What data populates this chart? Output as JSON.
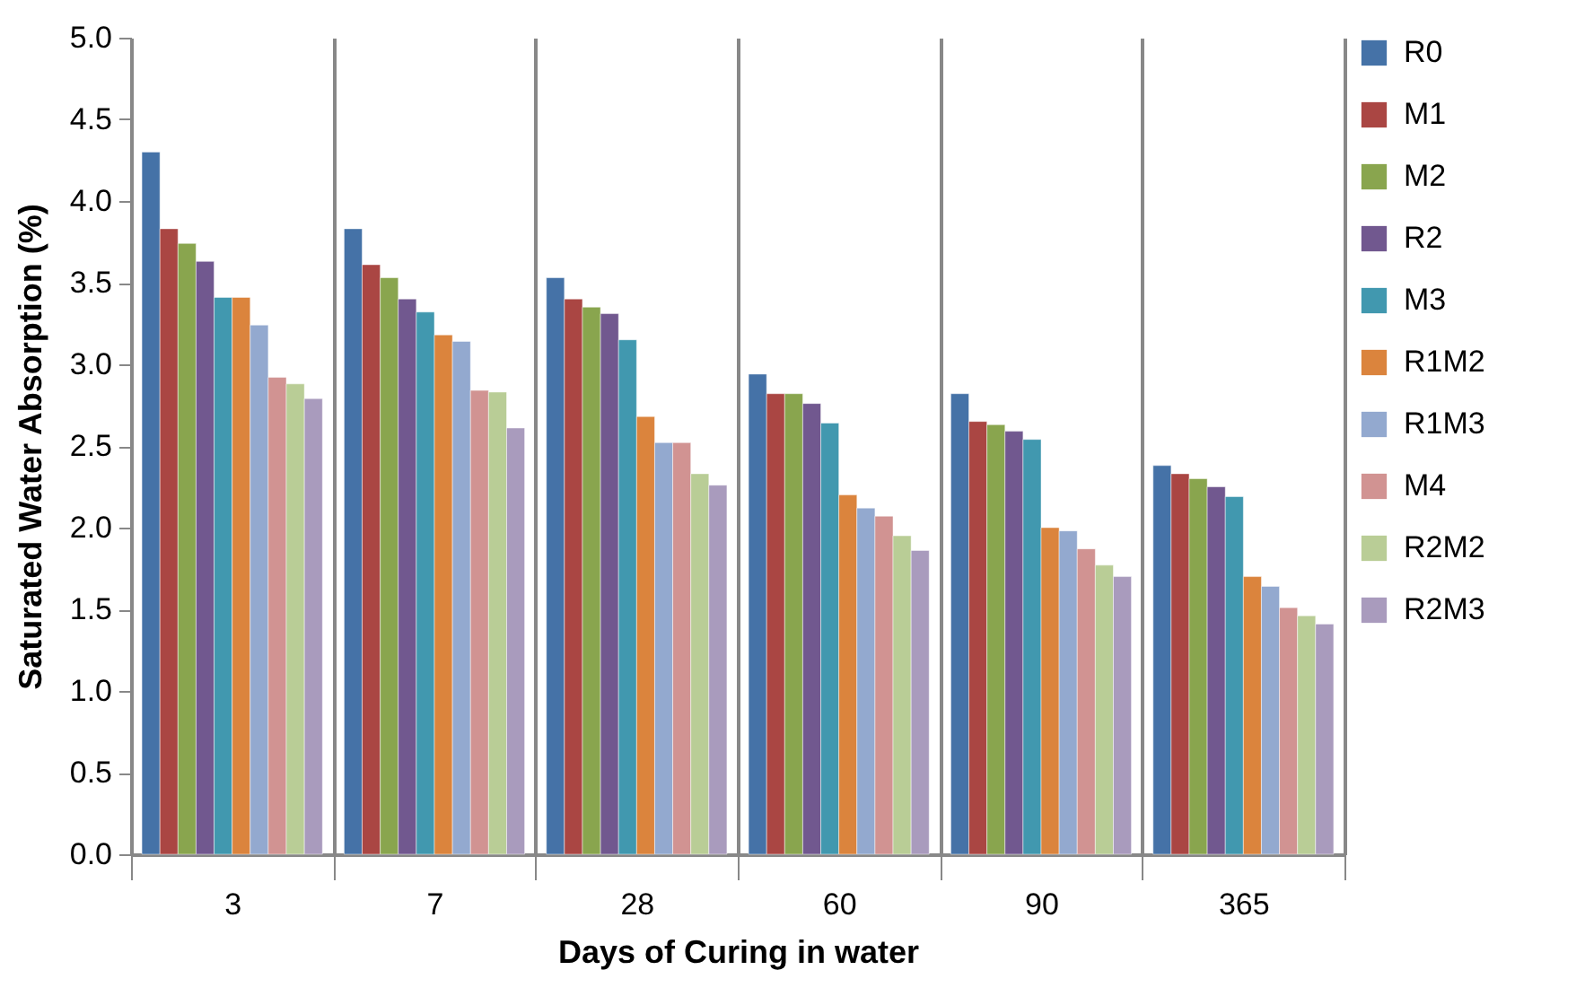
{
  "chart_data": {
    "type": "bar",
    "xlabel": "Days of Curing in water",
    "ylabel": "Saturated Water Absorption (%)",
    "categories": [
      "3",
      "7",
      "28",
      "60",
      "90",
      "365"
    ],
    "ylim": [
      0,
      5
    ],
    "yticks": [
      {
        "value": 0,
        "label": "0.0"
      },
      0.5,
      {
        "value": 1,
        "label": "1.0"
      },
      1.5,
      {
        "value": 2,
        "label": "2.0"
      },
      2.5,
      {
        "value": 3,
        "label": "3.0"
      },
      3.5,
      {
        "value": 4,
        "label": "4.0"
      },
      4.5,
      {
        "value": 5,
        "label": "5.0"
      }
    ],
    "grid": "x",
    "legend": "right",
    "series": [
      {
        "name": "R0",
        "color": "#4572a7",
        "values": [
          4.3,
          3.83,
          3.53,
          2.94,
          2.82,
          2.38
        ]
      },
      {
        "name": "M1",
        "color": "#aa4643",
        "values": [
          3.83,
          3.61,
          3.4,
          2.82,
          2.65,
          2.33
        ]
      },
      {
        "name": "M2",
        "color": "#89a54e",
        "values": [
          3.74,
          3.53,
          3.35,
          2.82,
          2.63,
          2.3
        ]
      },
      {
        "name": "R2",
        "color": "#71588f",
        "values": [
          3.63,
          3.4,
          3.31,
          2.76,
          2.59,
          2.25
        ]
      },
      {
        "name": "M3",
        "color": "#4198af",
        "values": [
          3.41,
          3.32,
          3.15,
          2.64,
          2.54,
          2.19
        ]
      },
      {
        "name": "R1M2",
        "color": "#db843d",
        "values": [
          3.41,
          3.18,
          2.68,
          2.2,
          2.0,
          1.7
        ]
      },
      {
        "name": "R1M3",
        "color": "#93a9cf",
        "values": [
          3.24,
          3.14,
          2.52,
          2.12,
          1.98,
          1.64
        ]
      },
      {
        "name": "M4",
        "color": "#d19392",
        "values": [
          2.92,
          2.84,
          2.52,
          2.07,
          1.87,
          1.51
        ]
      },
      {
        "name": "R2M2",
        "color": "#b9cd96",
        "values": [
          2.88,
          2.83,
          2.33,
          1.95,
          1.77,
          1.46
        ]
      },
      {
        "name": "R2M3",
        "color": "#a99bbd",
        "values": [
          2.79,
          2.61,
          2.26,
          1.86,
          1.7,
          1.41
        ]
      }
    ]
  }
}
